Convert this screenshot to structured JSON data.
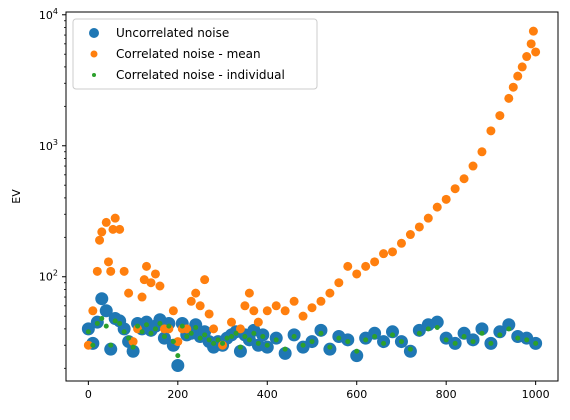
{
  "chart_data": {
    "type": "scatter",
    "ylabel": "EV",
    "xlabel": "",
    "title": "",
    "xlim": [
      -50,
      1050
    ],
    "ylim": [
      16,
      10500
    ],
    "yscale": "log",
    "x_ticks": [
      0,
      200,
      400,
      600,
      800,
      1000
    ],
    "x_tick_labels": [
      "0",
      "200",
      "400",
      "600",
      "800",
      "1000"
    ],
    "y_ticks": [
      100,
      1000,
      10000
    ],
    "y_tick_labels_base": [
      "10",
      "10",
      "10"
    ],
    "y_tick_labels_exp": [
      "2",
      "3",
      "4"
    ],
    "grid": false,
    "legend_position": "top-left",
    "legend": [
      {
        "label": "Uncorrelated noise",
        "color": "#1f77b4",
        "marker": "large-circle"
      },
      {
        "label": "Correlated noise - mean",
        "color": "#ff7f0e",
        "marker": "medium-circle"
      },
      {
        "label": "Correlated noise - individual",
        "color": "#2ca02c",
        "marker": "small-circle"
      }
    ],
    "series": [
      {
        "name": "Uncorrelated noise",
        "color": "#1f77b4",
        "x": [
          0,
          10,
          20,
          30,
          40,
          50,
          60,
          70,
          80,
          90,
          100,
          110,
          120,
          130,
          140,
          150,
          160,
          170,
          180,
          190,
          200,
          210,
          220,
          230,
          240,
          250,
          260,
          270,
          280,
          290,
          300,
          310,
          320,
          330,
          340,
          350,
          360,
          370,
          380,
          390,
          400,
          420,
          440,
          460,
          480,
          500,
          520,
          540,
          560,
          580,
          600,
          620,
          640,
          660,
          680,
          700,
          720,
          740,
          760,
          780,
          800,
          820,
          840,
          860,
          880,
          900,
          920,
          940,
          960,
          980,
          1000
        ],
        "y": [
          40,
          31,
          45,
          68,
          55,
          28,
          48,
          46,
          40,
          32,
          27,
          44,
          40,
          45,
          39,
          42,
          47,
          34,
          44,
          30,
          21,
          44,
          36,
          37,
          43,
          35,
          38,
          32,
          29,
          32,
          30,
          34,
          36,
          38,
          27,
          36,
          33,
          39,
          30,
          36,
          29,
          34,
          26,
          36,
          29,
          32,
          39,
          28,
          35,
          33,
          25,
          34,
          37,
          32,
          38,
          32,
          27,
          39,
          43,
          45,
          34,
          31,
          37,
          33,
          40,
          31,
          38,
          43,
          35,
          34,
          31
        ]
      },
      {
        "name": "Correlated noise - mean",
        "color": "#ff7f0e",
        "x": [
          0,
          10,
          20,
          25,
          30,
          40,
          45,
          50,
          55,
          60,
          70,
          80,
          90,
          100,
          110,
          120,
          125,
          130,
          140,
          150,
          160,
          170,
          180,
          190,
          200,
          210,
          220,
          230,
          240,
          250,
          260,
          270,
          280,
          300,
          320,
          340,
          350,
          360,
          370,
          380,
          400,
          420,
          440,
          460,
          480,
          500,
          520,
          540,
          560,
          580,
          600,
          620,
          640,
          660,
          680,
          700,
          720,
          740,
          760,
          780,
          800,
          820,
          840,
          860,
          880,
          900,
          920,
          940,
          950,
          960,
          970,
          980,
          990,
          995,
          1000
        ],
        "y": [
          30,
          55,
          110,
          190,
          220,
          260,
          130,
          110,
          230,
          280,
          230,
          110,
          75,
          32,
          40,
          70,
          95,
          120,
          90,
          105,
          85,
          40,
          40,
          55,
          32,
          40,
          40,
          65,
          75,
          60,
          95,
          52,
          40,
          30,
          45,
          40,
          60,
          75,
          55,
          45,
          55,
          60,
          55,
          65,
          50,
          58,
          65,
          75,
          90,
          120,
          105,
          120,
          130,
          150,
          155,
          180,
          210,
          240,
          280,
          340,
          390,
          470,
          560,
          700,
          900,
          1300,
          1700,
          2300,
          2800,
          3400,
          4000,
          4800,
          6000,
          7500,
          5200
        ]
      },
      {
        "name": "Correlated noise - individual",
        "color": "#2ca02c",
        "x": [
          0,
          10,
          20,
          30,
          40,
          50,
          60,
          70,
          80,
          90,
          100,
          110,
          120,
          130,
          140,
          150,
          160,
          170,
          180,
          190,
          200,
          210,
          220,
          230,
          240,
          250,
          260,
          270,
          280,
          290,
          300,
          310,
          320,
          330,
          340,
          350,
          360,
          370,
          380,
          390,
          400,
          420,
          440,
          460,
          480,
          500,
          520,
          540,
          560,
          580,
          600,
          620,
          640,
          660,
          680,
          700,
          720,
          740,
          760,
          780,
          800,
          820,
          840,
          860,
          880,
          900,
          920,
          940,
          960,
          980,
          1000
        ],
        "y": [
          38,
          30,
          44,
          48,
          42,
          30,
          46,
          44,
          38,
          34,
          29,
          42,
          38,
          43,
          37,
          40,
          44,
          35,
          42,
          32,
          25,
          42,
          35,
          37,
          41,
          34,
          36,
          33,
          31,
          33,
          31,
          34,
          35,
          37,
          29,
          35,
          33,
          37,
          31,
          35,
          30,
          33,
          28,
          35,
          30,
          32,
          37,
          29,
          34,
          32,
          27,
          33,
          35,
          31,
          36,
          32,
          28,
          37,
          40,
          41,
          33,
          31,
          35,
          32,
          37,
          31,
          36,
          40,
          34,
          33,
          31
        ]
      }
    ]
  }
}
